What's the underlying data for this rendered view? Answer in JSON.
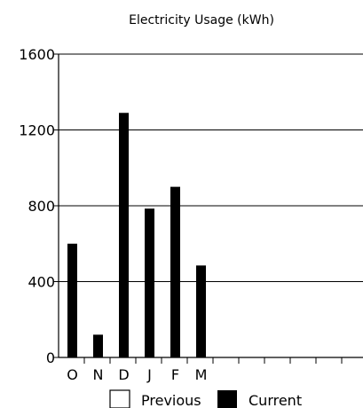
{
  "chart_data": {
    "type": "bar",
    "title": "Electricity Usage (kWh)",
    "xlabel": "",
    "ylabel": "",
    "ylim": [
      0,
      1600
    ],
    "yticks": [
      0,
      400,
      800,
      1200,
      1600
    ],
    "grid": true,
    "legend_position": "bottom",
    "categories": [
      "O",
      "N",
      "D",
      "J",
      "F",
      "M",
      "",
      "",
      "",
      "",
      "",
      ""
    ],
    "series": [
      {
        "name": "Previous",
        "color": "#ffffff",
        "values": [
          null,
          null,
          null,
          null,
          null,
          null,
          null,
          null,
          null,
          null,
          null,
          null
        ]
      },
      {
        "name": "Current",
        "color": "#000000",
        "values": [
          600,
          120,
          1290,
          785,
          900,
          485,
          null,
          null,
          null,
          null,
          null,
          null
        ]
      }
    ]
  }
}
